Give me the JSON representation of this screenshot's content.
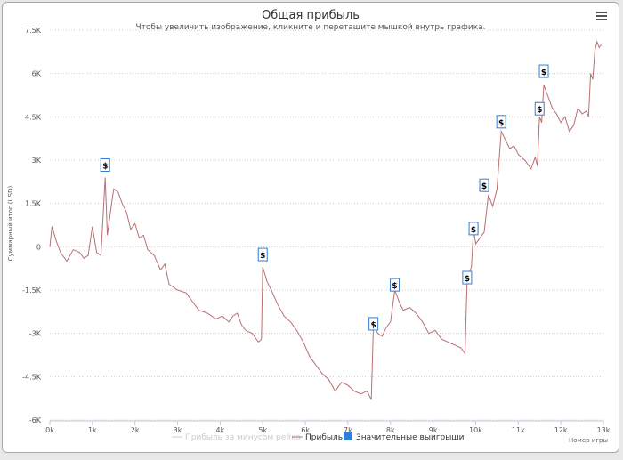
{
  "menu_icon": "hamburger-menu-icon",
  "chart_data": {
    "type": "line",
    "title": "Общая прибыль",
    "subtitle": "Чтобы увеличить изображение, кликните и перетащите мышкой внутрь графика.",
    "xlabel": "Номер игры",
    "ylabel": "Суммарный итог (USD)",
    "xlim": [
      0,
      13000
    ],
    "ylim": [
      -6000,
      7500
    ],
    "xticks": [
      "0k",
      "1k",
      "2k",
      "3k",
      "4k",
      "5k",
      "6k",
      "7k",
      "8k",
      "9k",
      "10k",
      "11k",
      "12k",
      "13k"
    ],
    "yticks": [
      {
        "v": 7500,
        "l": "7.5K"
      },
      {
        "v": 6000,
        "l": "6K"
      },
      {
        "v": 4500,
        "l": "4.5K"
      },
      {
        "v": 3000,
        "l": "3K"
      },
      {
        "v": 1500,
        "l": "1.5K"
      },
      {
        "v": 0,
        "l": "0"
      },
      {
        "v": -1500,
        "l": "-1.5K"
      },
      {
        "v": -3000,
        "l": "-3K"
      },
      {
        "v": -4500,
        "l": "-4.5K"
      },
      {
        "v": -6000,
        "l": "-6K"
      }
    ],
    "grid": true,
    "legend": {
      "position": "bottom",
      "items": [
        {
          "label": "Прибыль за минусом рейка",
          "color": "#cccccc",
          "hidden": true
        },
        {
          "label": "Прибыль",
          "color": "#b87070"
        },
        {
          "label": "Значительные выигрыши",
          "color": "#2f7ed8"
        }
      ]
    },
    "series": [
      {
        "name": "Прибыль",
        "color": "#b87070",
        "x": [
          0,
          50,
          150,
          250,
          400,
          550,
          700,
          800,
          900,
          1000,
          1100,
          1200,
          1300,
          1350,
          1450,
          1500,
          1600,
          1700,
          1800,
          1900,
          2000,
          2100,
          2200,
          2300,
          2450,
          2600,
          2700,
          2800,
          3000,
          3200,
          3350,
          3500,
          3700,
          3900,
          4050,
          4200,
          4300,
          4400,
          4500,
          4600,
          4750,
          4900,
          4970,
          5000,
          5100,
          5200,
          5350,
          5500,
          5650,
          5800,
          5950,
          6100,
          6250,
          6400,
          6550,
          6700,
          6850,
          7000,
          7150,
          7300,
          7450,
          7550,
          7600,
          7700,
          7800,
          7900,
          8000,
          8100,
          8200,
          8300,
          8450,
          8600,
          8750,
          8900,
          9050,
          9200,
          9350,
          9500,
          9650,
          9750,
          9800,
          9900,
          9950,
          10000,
          10100,
          10200,
          10300,
          10400,
          10500,
          10600,
          10700,
          10800,
          10900,
          11000,
          11150,
          11300,
          11400,
          11450,
          11500,
          11550,
          11600,
          11700,
          11800,
          11900,
          12000,
          12100,
          12200,
          12300,
          12400,
          12500,
          12600,
          12650,
          12700,
          12750,
          12800,
          12850,
          12900,
          12950
        ],
        "y": [
          0,
          700,
          200,
          -200,
          -500,
          -100,
          -200,
          -400,
          -300,
          700,
          -200,
          -300,
          2400,
          400,
          1500,
          2000,
          1900,
          1500,
          1200,
          600,
          800,
          300,
          400,
          -100,
          -300,
          -800,
          -600,
          -1300,
          -1500,
          -1600,
          -1900,
          -2200,
          -2300,
          -2500,
          -2400,
          -2600,
          -2400,
          -2300,
          -2700,
          -2900,
          -3000,
          -3300,
          -3200,
          -700,
          -1200,
          -1500,
          -2000,
          -2400,
          -2600,
          -2900,
          -3300,
          -3800,
          -4100,
          -4400,
          -4600,
          -5000,
          -4700,
          -4800,
          -5000,
          -5100,
          -5000,
          -5300,
          -2700,
          -3000,
          -3100,
          -2800,
          -2600,
          -1500,
          -1900,
          -2200,
          -2100,
          -2300,
          -2600,
          -3000,
          -2900,
          -3200,
          -3300,
          -3400,
          -3500,
          -3700,
          -1100,
          -700,
          600,
          100,
          300,
          500,
          1800,
          1400,
          2000,
          4000,
          3700,
          3400,
          3500,
          3200,
          3000,
          2700,
          3100,
          2800,
          4500,
          4300,
          5600,
          5200,
          4800,
          4600,
          4300,
          4500,
          4000,
          4200,
          4800,
          4600,
          4700,
          4500,
          6000,
          5800,
          6800,
          7100,
          6900,
          7000
        ]
      }
    ],
    "markers": {
      "label": "$",
      "x": [
        1300,
        5000,
        7600,
        8100,
        9800,
        9950,
        10200,
        10600,
        11500,
        11600
      ],
      "y": [
        2800,
        -300,
        -2700,
        -1350,
        -1100,
        600,
        2100,
        4300,
        4750,
        6050
      ]
    }
  }
}
